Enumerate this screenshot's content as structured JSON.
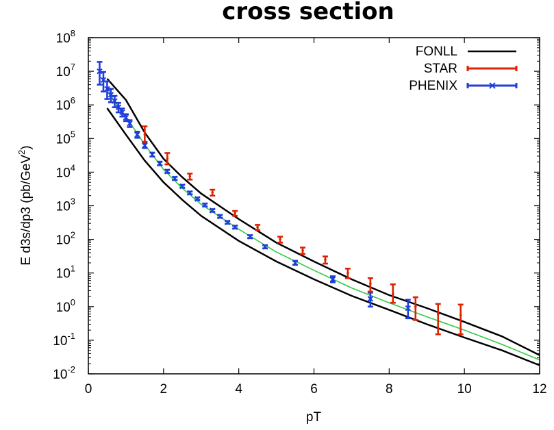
{
  "chart_data": {
    "type": "scatter",
    "title": "cross section",
    "xlabel": "pT",
    "ylabel": "E d3s/dp3 (pb/GeV",
    "ylabel_sup": "2",
    "ylabel_close": ")",
    "xlim": [
      0,
      12
    ],
    "ylim": [
      0.01,
      100000000
    ],
    "yscale": "log",
    "x_ticks": [
      0,
      2,
      4,
      6,
      8,
      10,
      12
    ],
    "y_tick_exponents": [
      -2,
      -1,
      0,
      1,
      2,
      3,
      4,
      5,
      6,
      7,
      8
    ],
    "y_tick_base": "10",
    "legend_position": "top-right",
    "colors": {
      "fonll": "#000000",
      "star": "#dd2200",
      "phenix": "#1f3ddb",
      "band_center": "#2ecc40"
    },
    "series": [
      {
        "name": "FONLL",
        "kind": "band",
        "x": [
          0.5,
          1,
          1.5,
          2,
          2.5,
          3,
          4,
          5,
          6,
          7,
          8,
          9,
          10,
          11,
          12
        ],
        "upper": [
          6000000,
          1400000,
          150000,
          25000,
          7000,
          2300,
          400,
          80,
          22,
          6.5,
          2.2,
          0.9,
          0.35,
          0.13,
          0.036
        ],
        "lower": [
          800000,
          130000,
          22000,
          5000,
          1500,
          500,
          90,
          22,
          6.5,
          2.1,
          0.8,
          0.3,
          0.12,
          0.05,
          0.018
        ],
        "center": [
          2500000,
          450000,
          65000,
          12000,
          3300,
          1100,
          200,
          42,
          12,
          3.6,
          1.3,
          0.5,
          0.2,
          0.075,
          0.026
        ]
      },
      {
        "name": "STAR",
        "kind": "errorbar",
        "x": [
          1.5,
          2.1,
          2.7,
          3.3,
          3.9,
          4.5,
          5.1,
          5.7,
          6.3,
          6.9,
          7.5,
          8.1,
          8.7,
          9.3,
          9.9
        ],
        "y": [
          130000,
          25000,
          7500,
          2500,
          600,
          230,
          100,
          47,
          25,
          10,
          4.8,
          2.4,
          1.0,
          0.6,
          0.55
        ],
        "err_low": [
          50000,
          8000,
          1500,
          500,
          100,
          40,
          20,
          10,
          6,
          3,
          2,
          1.1,
          0.6,
          0.45,
          0.4
        ],
        "err_high": [
          100000,
          12000,
          1500,
          500,
          100,
          40,
          20,
          10,
          6,
          3.5,
          2.2,
          2.2,
          0.9,
          0.6,
          0.6
        ]
      },
      {
        "name": "PHENIX",
        "kind": "errorbar",
        "x": [
          0.3,
          0.4,
          0.5,
          0.6,
          0.7,
          0.8,
          0.9,
          1.0,
          1.1,
          1.3,
          1.5,
          1.7,
          1.9,
          2.1,
          2.3,
          2.5,
          2.7,
          2.9,
          3.1,
          3.3,
          3.5,
          3.7,
          3.9,
          4.3,
          4.7,
          5.5,
          6.5,
          7.5,
          8.5
        ],
        "y": [
          10000000,
          5500000,
          3000000,
          2000000,
          1300000,
          850000,
          600000,
          420000,
          280000,
          130000,
          62000,
          33000,
          18000,
          10500,
          6500,
          3800,
          2400,
          1600,
          1050,
          720,
          480,
          320,
          230,
          120,
          60,
          20,
          6.5,
          1.7,
          0.9
        ],
        "err_low": [
          6000000,
          3000000,
          1500000,
          800000,
          450000,
          250000,
          150000,
          90000,
          60000,
          25000,
          10000,
          4000,
          2000,
          1000,
          600,
          350,
          200,
          130,
          90,
          60,
          40,
          28,
          20,
          11,
          6,
          2.5,
          1.2,
          0.7,
          0.45
        ],
        "err_high": [
          9000000,
          4000000,
          2000000,
          1000000,
          550000,
          300000,
          180000,
          110000,
          70000,
          30000,
          12000,
          5000,
          2500,
          1200,
          700,
          400,
          250,
          160,
          110,
          70,
          50,
          32,
          24,
          13,
          7,
          3,
          1.5,
          0.9,
          0.7
        ]
      }
    ]
  }
}
